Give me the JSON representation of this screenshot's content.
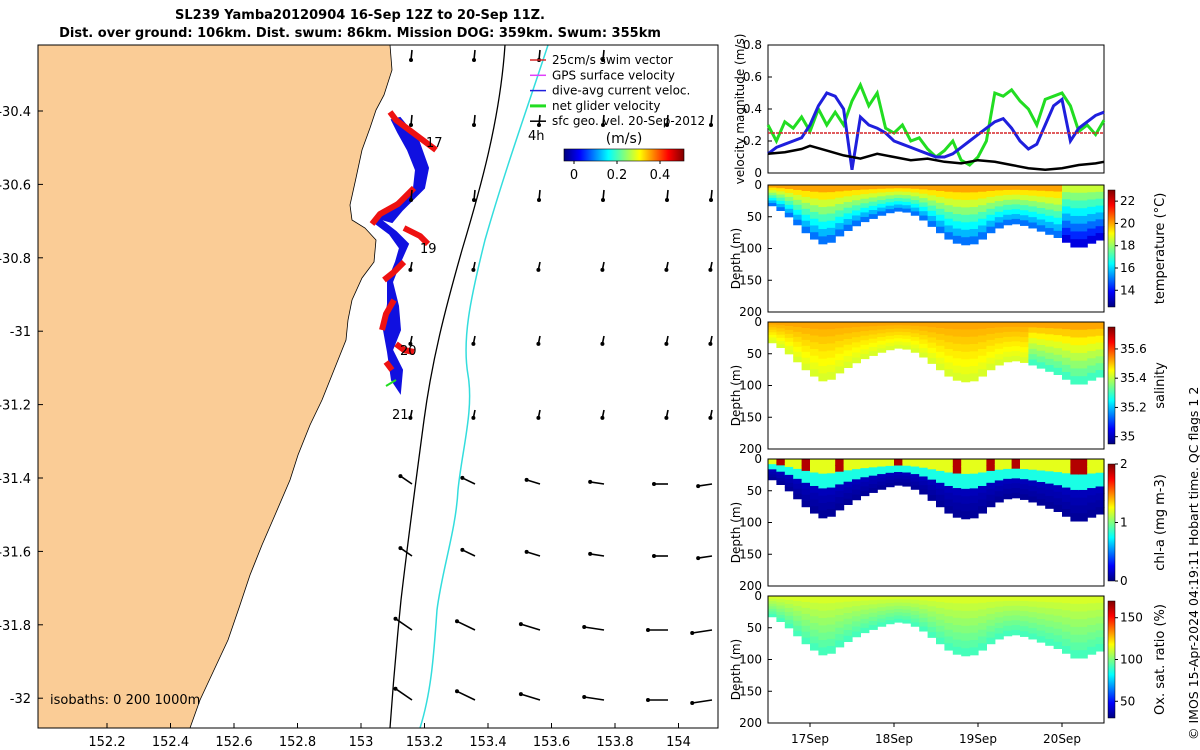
{
  "header": {
    "title_line1": "SL239 Yamba20120904 16-Sep 12Z to 20-Sep 11Z.",
    "title_line2": "Dist. over ground: 106km. Dist. swum: 86km. Mission DOG: 359km. Swum: 355km"
  },
  "credit": "© IMOS 15-Apr-2024 04:19:11 Hobart time. QC flags 1  2",
  "map": {
    "lon_ticks": [
      "152.2",
      "152.4",
      "152.6",
      "152.8",
      "153",
      "153.2",
      "153.4",
      "153.6",
      "153.8",
      "154"
    ],
    "lat_ticks": [
      "-30.4",
      "-30.6",
      "-30.8",
      "-31",
      "-31.2",
      "-31.4",
      "-31.6",
      "-31.8",
      "-32"
    ],
    "legend": {
      "items": [
        "25cm/s swim vector",
        "GPS surface velocity",
        "dive-avg current veloc.",
        "net glider velocity",
        "sfc geo. vel. 20-Sep-2012"
      ],
      "colors": [
        "#d62728",
        "#e040fb",
        "#1f1fdd",
        "#22dd22",
        "#000000"
      ]
    },
    "colorbar": {
      "title": "(m/s)",
      "ticks": [
        "0",
        "0.2",
        "0.4"
      ]
    },
    "isobaths": "isobaths: 0   200  1000m",
    "day_labels": [
      "17",
      "19",
      "20",
      "21"
    ],
    "time_label": "4h",
    "colors": {
      "land": "#facc96",
      "isobath_200": "#000000",
      "isobath_1000": "#33dddd",
      "track_blue": "#1010e0",
      "track_red": "#ee1111"
    }
  },
  "chart_data": [
    {
      "type": "line",
      "title": "",
      "ylabel": "velocity magnitude (m/s)",
      "ylim": [
        0,
        0.8
      ],
      "yticks": [
        "0",
        "0.2",
        "0.4",
        "0.6",
        "0.8"
      ],
      "xlim_days": [
        16.5,
        20.5
      ],
      "series": [
        {
          "name": "net glider velocity",
          "color": "#22dd22",
          "x": [
            16.5,
            16.6,
            16.7,
            16.8,
            16.9,
            17.0,
            17.1,
            17.2,
            17.3,
            17.4,
            17.5,
            17.6,
            17.7,
            17.8,
            17.9,
            18.0,
            18.1,
            18.2,
            18.3,
            18.4,
            18.5,
            18.6,
            18.7,
            18.8,
            18.9,
            19.0,
            19.1,
            19.2,
            19.3,
            19.4,
            19.5,
            19.6,
            19.7,
            19.8,
            19.9,
            20.0,
            20.1,
            20.2,
            20.3,
            20.4,
            20.5
          ],
          "values": [
            0.3,
            0.2,
            0.32,
            0.28,
            0.35,
            0.26,
            0.4,
            0.3,
            0.38,
            0.3,
            0.45,
            0.55,
            0.42,
            0.5,
            0.28,
            0.25,
            0.3,
            0.2,
            0.22,
            0.15,
            0.1,
            0.14,
            0.2,
            0.08,
            0.05,
            0.1,
            0.2,
            0.5,
            0.48,
            0.52,
            0.45,
            0.4,
            0.3,
            0.46,
            0.48,
            0.5,
            0.42,
            0.26,
            0.3,
            0.24,
            0.33
          ]
        },
        {
          "name": "dive-avg current veloc.",
          "color": "#1f1fdd",
          "x": [
            16.5,
            16.6,
            16.7,
            16.8,
            16.9,
            17.0,
            17.1,
            17.2,
            17.3,
            17.4,
            17.5,
            17.6,
            17.7,
            17.8,
            17.9,
            18.0,
            18.1,
            18.2,
            18.3,
            18.4,
            18.5,
            18.6,
            18.7,
            18.8,
            18.9,
            19.0,
            19.1,
            19.2,
            19.3,
            19.4,
            19.5,
            19.6,
            19.7,
            19.8,
            19.9,
            20.0,
            20.1,
            20.2,
            20.3,
            20.4,
            20.5
          ],
          "values": [
            0.12,
            0.16,
            0.18,
            0.2,
            0.22,
            0.3,
            0.42,
            0.5,
            0.48,
            0.4,
            0.02,
            0.35,
            0.3,
            0.28,
            0.25,
            0.2,
            0.18,
            0.16,
            0.14,
            0.12,
            0.1,
            0.1,
            0.12,
            0.16,
            0.2,
            0.24,
            0.28,
            0.32,
            0.34,
            0.28,
            0.2,
            0.15,
            0.18,
            0.3,
            0.42,
            0.46,
            0.2,
            0.28,
            0.32,
            0.36,
            0.38
          ]
        },
        {
          "name": "25cm/s swim vector",
          "color": "#d62728",
          "x": [
            16.5,
            20.5
          ],
          "values": [
            0.25,
            0.25
          ]
        },
        {
          "name": "sfc geo. vel.",
          "color": "#000000",
          "x": [
            16.5,
            16.7,
            16.9,
            17.0,
            17.2,
            17.4,
            17.6,
            17.8,
            18.0,
            18.2,
            18.4,
            18.6,
            18.8,
            19.0,
            19.2,
            19.4,
            19.6,
            19.8,
            20.0,
            20.2,
            20.4,
            20.5
          ],
          "values": [
            0.12,
            0.13,
            0.15,
            0.17,
            0.14,
            0.11,
            0.09,
            0.12,
            0.1,
            0.08,
            0.09,
            0.07,
            0.06,
            0.08,
            0.07,
            0.05,
            0.03,
            0.02,
            0.03,
            0.05,
            0.06,
            0.07
          ]
        }
      ]
    },
    {
      "type": "heatmap",
      "ylabel": "Depth (m)",
      "yticks": [
        "0",
        "50",
        "100",
        "150",
        "200"
      ],
      "ylim": [
        0,
        200
      ],
      "cbar_label": "temperature (°C)",
      "cbar_ticks": [
        "14",
        "16",
        "18",
        "20",
        "22"
      ],
      "cbar_range": [
        12.5,
        23
      ],
      "x_days": [
        16.5,
        16.6,
        16.7,
        16.8,
        16.9,
        17.0,
        17.1,
        17.2,
        17.3,
        17.4,
        17.5,
        17.6,
        17.7,
        17.8,
        17.9,
        18.0,
        18.1,
        18.2,
        18.3,
        18.4,
        18.5,
        18.6,
        18.7,
        18.8,
        18.9,
        19.0,
        19.1,
        19.2,
        19.3,
        19.4,
        19.5,
        19.6,
        19.7,
        19.8,
        19.9,
        20.0,
        20.1,
        20.2,
        20.3,
        20.4,
        20.5
      ],
      "max_depth": [
        30,
        35,
        45,
        55,
        70,
        80,
        90,
        95,
        85,
        75,
        68,
        60,
        55,
        50,
        45,
        42,
        40,
        45,
        50,
        60,
        70,
        80,
        90,
        93,
        95,
        90,
        80,
        70,
        65,
        60,
        62,
        65,
        70,
        75,
        80,
        85,
        95,
        100,
        95,
        88,
        85
      ],
      "surface_value": 19.5,
      "deep_value": 14.5
    },
    {
      "type": "heatmap",
      "ylabel": "Depth (m)",
      "yticks": [
        "0",
        "50",
        "100",
        "150",
        "200"
      ],
      "ylim": [
        0,
        200
      ],
      "cbar_label": "salinity",
      "cbar_ticks": [
        "35",
        "35.2",
        "35.4",
        "35.6"
      ],
      "cbar_range": [
        34.95,
        35.75
      ],
      "surface_value": 35.48,
      "deep_value": 35.35
    },
    {
      "type": "heatmap",
      "ylabel": "Depth (m)",
      "yticks": [
        "0",
        "50",
        "100",
        "150",
        "200"
      ],
      "ylim": [
        0,
        200
      ],
      "cbar_label": "chl-a (mg m-3)",
      "cbar_ticks": [
        "0",
        "1",
        "2"
      ],
      "cbar_range": [
        0,
        2
      ],
      "surface_value": 1.3,
      "deep_value": 0.1
    },
    {
      "type": "heatmap",
      "ylabel": "Depth (m)",
      "yticks": [
        "0",
        "50",
        "100",
        "150",
        "200"
      ],
      "ylim": [
        0,
        200
      ],
      "cbar_label": "Ox. sat. ratio (%)",
      "cbar_ticks": [
        "50",
        "100",
        "150"
      ],
      "cbar_range": [
        30,
        170
      ],
      "surface_value": 110,
      "deep_value": 95
    }
  ],
  "time_axis": {
    "ticks": [
      "17Sep",
      "18Sep",
      "19Sep",
      "20Sep"
    ],
    "tick_days": [
      17,
      18,
      19,
      20
    ]
  }
}
